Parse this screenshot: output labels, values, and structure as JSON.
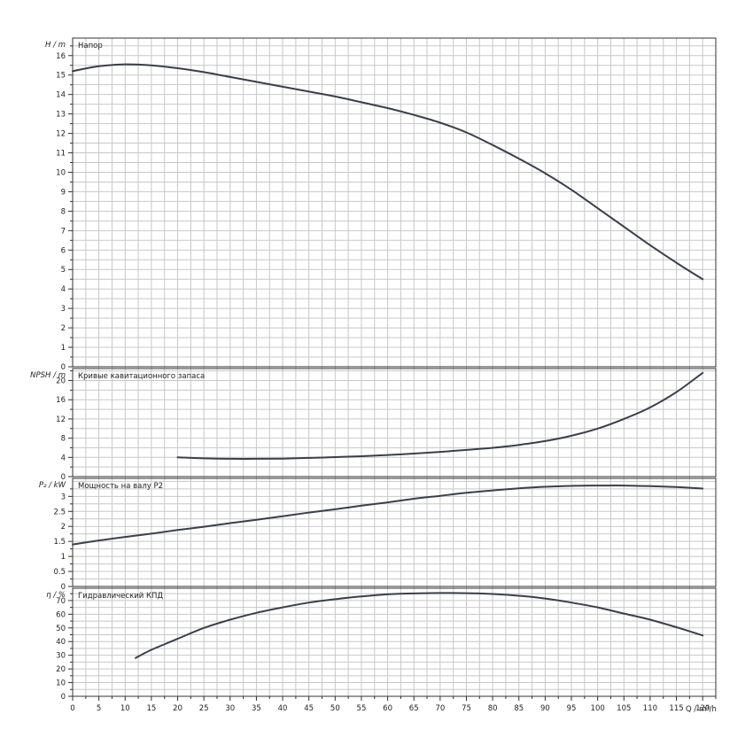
{
  "chart_data": {
    "type": "line",
    "x_axis": {
      "label": "Q / m³/h",
      "ticks": [
        0,
        5,
        10,
        15,
        20,
        25,
        30,
        35,
        40,
        45,
        50,
        55,
        60,
        65,
        70,
        75,
        80,
        85,
        90,
        95,
        100,
        105,
        110,
        115,
        120
      ],
      "range": [
        0,
        122.5
      ]
    },
    "panels": [
      {
        "id": "head",
        "title": "Напор",
        "y_label": "H / m",
        "y_range": [
          0,
          16.9
        ],
        "y_ticks": [
          0,
          1,
          2,
          3,
          4,
          5,
          6,
          7,
          8,
          9,
          10,
          11,
          12,
          13,
          14,
          15,
          16
        ],
        "x": [
          0,
          5,
          10,
          15,
          20,
          25,
          30,
          35,
          40,
          45,
          50,
          55,
          60,
          65,
          70,
          75,
          80,
          85,
          90,
          95,
          100,
          105,
          110,
          115,
          120
        ],
        "values": [
          15.2,
          15.45,
          15.55,
          15.5,
          15.35,
          15.15,
          14.9,
          14.65,
          14.4,
          14.15,
          13.9,
          13.6,
          13.3,
          12.95,
          12.55,
          12.05,
          11.4,
          10.7,
          9.95,
          9.1,
          8.15,
          7.2,
          6.25,
          5.35,
          4.5
        ]
      },
      {
        "id": "npsh",
        "title": "Кривые кавитационного запаса",
        "y_label": "NPSH / m",
        "y_range": [
          0,
          22.5
        ],
        "y_ticks": [
          0,
          4,
          8,
          12,
          16,
          20
        ],
        "x": [
          20,
          25,
          30,
          35,
          40,
          45,
          50,
          55,
          60,
          65,
          70,
          75,
          80,
          85,
          90,
          95,
          100,
          105,
          110,
          115,
          120
        ],
        "values": [
          4.0,
          3.8,
          3.7,
          3.7,
          3.75,
          3.9,
          4.05,
          4.25,
          4.5,
          4.8,
          5.15,
          5.55,
          6.0,
          6.6,
          7.4,
          8.5,
          10.0,
          12.0,
          14.4,
          17.6,
          21.6
        ]
      },
      {
        "id": "power",
        "title": "Мощность на валу P2",
        "y_label": "P₂ / kW",
        "y_range": [
          0,
          3.6
        ],
        "y_ticks": [
          0,
          0.5,
          1,
          1.5,
          2,
          2.5,
          3
        ],
        "y_tick_labels": [
          "0",
          "0.5",
          "1",
          "1.5",
          "2",
          "2.5",
          "3"
        ],
        "x": [
          0,
          5,
          10,
          15,
          20,
          25,
          30,
          35,
          40,
          45,
          50,
          55,
          60,
          65,
          70,
          75,
          80,
          85,
          90,
          95,
          100,
          105,
          110,
          115,
          120
        ],
        "values": [
          1.4,
          1.53,
          1.65,
          1.76,
          1.88,
          1.99,
          2.11,
          2.22,
          2.34,
          2.46,
          2.57,
          2.69,
          2.8,
          2.92,
          3.02,
          3.12,
          3.2,
          3.27,
          3.32,
          3.35,
          3.36,
          3.36,
          3.34,
          3.31,
          3.26
        ]
      },
      {
        "id": "efficiency",
        "title": "Гидравлический КПД",
        "y_label": "η / %",
        "y_range": [
          0,
          79
        ],
        "y_ticks": [
          0,
          10,
          20,
          30,
          40,
          50,
          60,
          70
        ],
        "x": [
          12,
          15,
          20,
          25,
          30,
          35,
          40,
          45,
          50,
          55,
          60,
          65,
          70,
          75,
          80,
          85,
          90,
          95,
          100,
          105,
          110,
          115,
          120
        ],
        "values": [
          28,
          34,
          42,
          50,
          56,
          61,
          65,
          68.5,
          71,
          73,
          74.5,
          75.2,
          75.5,
          75.4,
          74.8,
          73.5,
          71.5,
          68.5,
          65,
          60.5,
          56,
          50.5,
          44.5
        ]
      }
    ],
    "grid": true,
    "legend": "none"
  }
}
